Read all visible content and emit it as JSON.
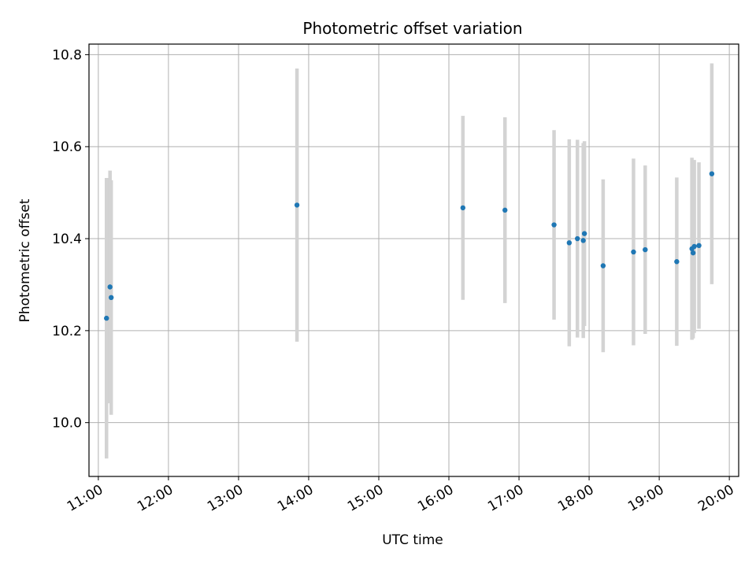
{
  "chart_data": {
    "type": "scatter",
    "title": "Photometric offset variation",
    "xlabel": "UTC time",
    "ylabel": "Photometric offset",
    "grid": true,
    "x_unit": "UTC time of day",
    "xlim": [
      "10:52",
      "20:08"
    ],
    "ylim": [
      9.883,
      10.823
    ],
    "xticks": [
      "11:00",
      "12:00",
      "13:00",
      "14:00",
      "15:00",
      "16:00",
      "17:00",
      "18:00",
      "19:00",
      "20:00"
    ],
    "yticks": [
      "10.0",
      "10.2",
      "10.4",
      "10.6",
      "10.8"
    ],
    "colors": {
      "marker": "#1f77b4",
      "errorbar": "#d3d3d3",
      "grid": "#b0b0b0"
    },
    "series": [
      {
        "points": [
          {
            "x": "11:07",
            "y": 10.227,
            "err": 0.305
          },
          {
            "x": "11:10",
            "y": 10.295,
            "err": 0.253
          },
          {
            "x": "11:11",
            "y": 10.272,
            "err": 0.255
          },
          {
            "x": "13:50",
            "y": 10.473,
            "err": 0.297
          },
          {
            "x": "16:12",
            "y": 10.467,
            "err": 0.2
          },
          {
            "x": "16:48",
            "y": 10.462,
            "err": 0.202
          },
          {
            "x": "17:30",
            "y": 10.43,
            "err": 0.206
          },
          {
            "x": "17:43",
            "y": 10.391,
            "err": 0.225
          },
          {
            "x": "17:50",
            "y": 10.4,
            "err": 0.215
          },
          {
            "x": "17:55",
            "y": 10.396,
            "err": 0.212
          },
          {
            "x": "17:56",
            "y": 10.411,
            "err": 0.201
          },
          {
            "x": "18:12",
            "y": 10.341,
            "err": 0.188
          },
          {
            "x": "18:38",
            "y": 10.371,
            "err": 0.203
          },
          {
            "x": "18:48",
            "y": 10.376,
            "err": 0.183
          },
          {
            "x": "19:15",
            "y": 10.35,
            "err": 0.183
          },
          {
            "x": "19:28",
            "y": 10.378,
            "err": 0.198
          },
          {
            "x": "19:29",
            "y": 10.369,
            "err": 0.186
          },
          {
            "x": "19:30",
            "y": 10.383,
            "err": 0.188
          },
          {
            "x": "19:34",
            "y": 10.385,
            "err": 0.181
          },
          {
            "x": "19:45",
            "y": 10.541,
            "err": 0.24
          }
        ]
      }
    ]
  }
}
